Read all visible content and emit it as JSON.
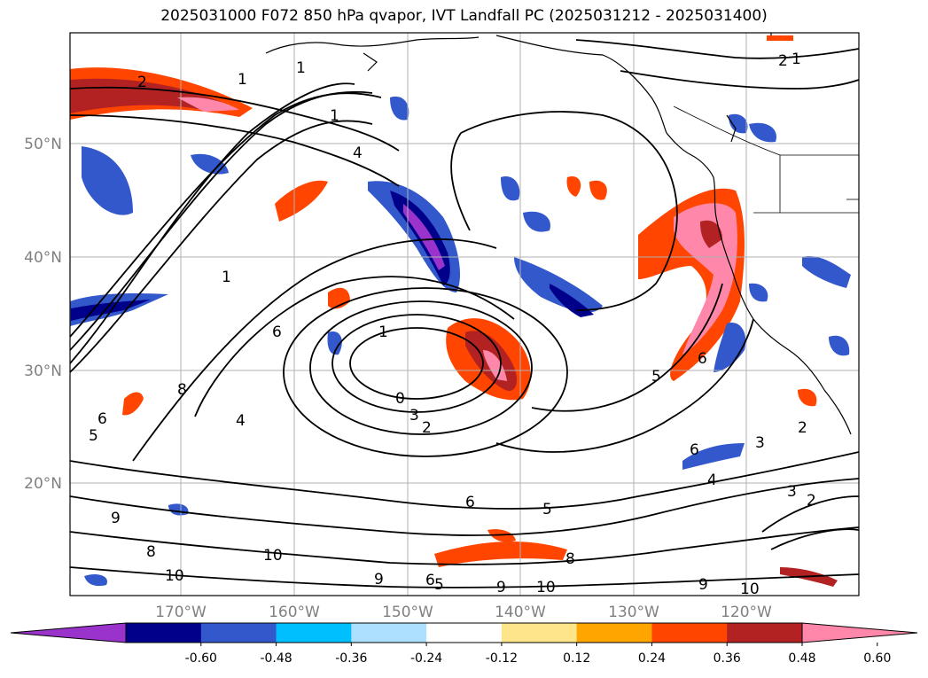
{
  "title": "2025031000 F072 850 hPa qvapor, IVT Landfall PC (2025031212 - 2025031400)",
  "axes": {
    "lat_labels": [
      "50°N",
      "40°N",
      "30°N",
      "20°N"
    ],
    "lon_labels": [
      "170°W",
      "160°W",
      "150°W",
      "140°W",
      "130°W",
      "120°W"
    ],
    "label_color": "#808080"
  },
  "colorbar": {
    "ticks": [
      "-0.60",
      "-0.48",
      "-0.36",
      "-0.24",
      "-0.12",
      "0.12",
      "0.24",
      "0.36",
      "0.48",
      "0.60"
    ],
    "colors": [
      "#9933cc",
      "#00008b",
      "#3358cc",
      "#00bfff",
      "#addfff",
      "#ffffff",
      "#ffe58a",
      "#ffa500",
      "#ff4500",
      "#b22222",
      "#ff88aa"
    ]
  },
  "contour_labels": [
    "2",
    "1",
    "1",
    "1",
    "4",
    "1",
    "6",
    "8",
    "6",
    "1",
    "0",
    "3",
    "2",
    "4",
    "5",
    "6",
    "5",
    "4",
    "3",
    "2",
    "6",
    "5",
    "6",
    "2",
    "1",
    "10",
    "10",
    "9",
    "6",
    "9",
    "10",
    "9",
    "10",
    "8",
    "2",
    "5",
    "9",
    "8",
    "3"
  ]
}
